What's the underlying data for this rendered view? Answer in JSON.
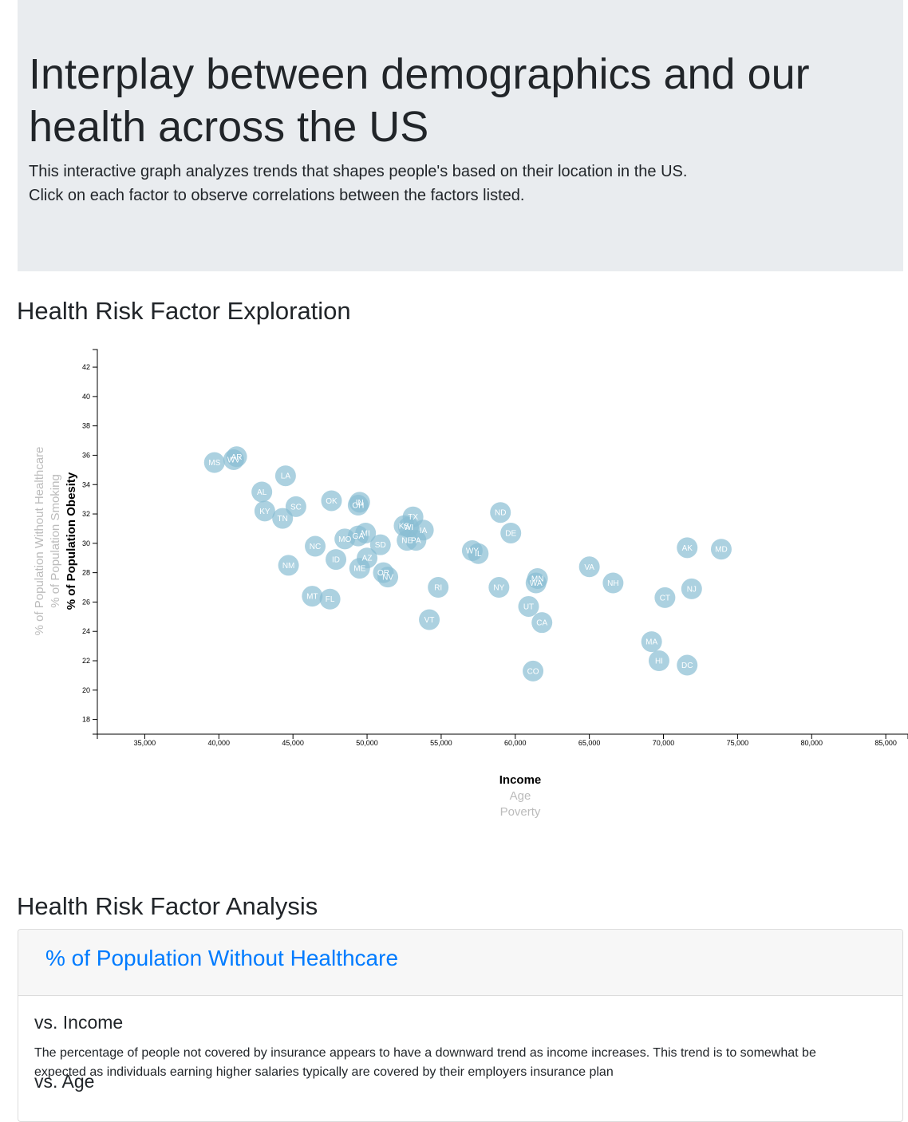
{
  "header": {
    "title": "Interplay between demographics and our health across the US",
    "line1": "This interactive graph analyzes trends that shapes people's based on their location in the US.",
    "line2": "Click on each factor to observe correlations between the factors listed."
  },
  "exploration": {
    "title": "Health Risk Factor Exploration"
  },
  "analysis": {
    "title": "Health Risk Factor Analysis",
    "card_title": "% of Population Without Healthcare",
    "sub1": "vs. Income",
    "text1": "The percentage of people not covered by insurance appears to have a downward trend as income increases. This trend is to somewhat be expected as individuals earning higher salaries typically are covered by their employers insurance plan",
    "sub2": "vs. Age"
  },
  "chart_data": {
    "type": "scatter",
    "x_axis_labels": [
      {
        "text": "Income",
        "active": true
      },
      {
        "text": "Age",
        "active": false
      },
      {
        "text": "Poverty",
        "active": false
      }
    ],
    "y_axis_labels": [
      {
        "text": "% of Population Obesity",
        "active": true
      },
      {
        "text": "% of Population Smoking",
        "active": false
      },
      {
        "text": "% of Population Without Healthcare",
        "active": false
      }
    ],
    "xlim": [
      31800,
      86500
    ],
    "ylim": [
      17,
      43.2
    ],
    "x_ticks": [
      35000,
      40000,
      45000,
      50000,
      55000,
      60000,
      65000,
      70000,
      75000,
      80000,
      85000
    ],
    "y_ticks": [
      18,
      20,
      22,
      24,
      26,
      28,
      30,
      32,
      34,
      36,
      38,
      40,
      42
    ],
    "marker_color": "#89bdd3",
    "points": [
      {
        "abbr": "MS",
        "x": 39700,
        "y": 35.5
      },
      {
        "abbr": "WV",
        "x": 41000,
        "y": 35.7
      },
      {
        "abbr": "AR",
        "x": 41200,
        "y": 35.9
      },
      {
        "abbr": "LA",
        "x": 44500,
        "y": 34.6
      },
      {
        "abbr": "AL",
        "x": 42900,
        "y": 33.5
      },
      {
        "abbr": "KY",
        "x": 43100,
        "y": 32.2
      },
      {
        "abbr": "TN",
        "x": 44300,
        "y": 31.7
      },
      {
        "abbr": "SC",
        "x": 45200,
        "y": 32.5
      },
      {
        "abbr": "OK",
        "x": 47600,
        "y": 32.9
      },
      {
        "abbr": "OH",
        "x": 49400,
        "y": 32.6
      },
      {
        "abbr": "IN",
        "x": 49500,
        "y": 32.8
      },
      {
        "abbr": "NC",
        "x": 46500,
        "y": 29.8
      },
      {
        "abbr": "MO",
        "x": 48500,
        "y": 30.3
      },
      {
        "abbr": "GA",
        "x": 49400,
        "y": 30.5
      },
      {
        "abbr": "MI",
        "x": 49900,
        "y": 30.7
      },
      {
        "abbr": "ID",
        "x": 47900,
        "y": 28.9
      },
      {
        "abbr": "NM",
        "x": 44700,
        "y": 28.5
      },
      {
        "abbr": "ME",
        "x": 49500,
        "y": 28.3
      },
      {
        "abbr": "AZ",
        "x": 50000,
        "y": 29.0
      },
      {
        "abbr": "SD",
        "x": 50900,
        "y": 29.9
      },
      {
        "abbr": "OR",
        "x": 51100,
        "y": 28.0
      },
      {
        "abbr": "NV",
        "x": 51400,
        "y": 27.7
      },
      {
        "abbr": "MT",
        "x": 46300,
        "y": 26.4
      },
      {
        "abbr": "FL",
        "x": 47500,
        "y": 26.2
      },
      {
        "abbr": "TX",
        "x": 53100,
        "y": 31.8
      },
      {
        "abbr": "KS",
        "x": 52500,
        "y": 31.2
      },
      {
        "abbr": "WI",
        "x": 52800,
        "y": 31.1
      },
      {
        "abbr": "IA",
        "x": 53800,
        "y": 30.9
      },
      {
        "abbr": "NE",
        "x": 52700,
        "y": 30.2
      },
      {
        "abbr": "PA",
        "x": 53300,
        "y": 30.2
      },
      {
        "abbr": "VT",
        "x": 54200,
        "y": 24.8
      },
      {
        "abbr": "RI",
        "x": 54800,
        "y": 27.0
      },
      {
        "abbr": "WY",
        "x": 57100,
        "y": 29.5
      },
      {
        "abbr": "IL",
        "x": 57500,
        "y": 29.3
      },
      {
        "abbr": "ND",
        "x": 59000,
        "y": 32.1
      },
      {
        "abbr": "DE",
        "x": 59700,
        "y": 30.7
      },
      {
        "abbr": "NY",
        "x": 58900,
        "y": 27.0
      },
      {
        "abbr": "MN",
        "x": 61500,
        "y": 27.6
      },
      {
        "abbr": "WA",
        "x": 61400,
        "y": 27.3
      },
      {
        "abbr": "UT",
        "x": 60900,
        "y": 25.7
      },
      {
        "abbr": "CA",
        "x": 61800,
        "y": 24.6
      },
      {
        "abbr": "CO",
        "x": 61200,
        "y": 21.3
      },
      {
        "abbr": "VA",
        "x": 65000,
        "y": 28.4
      },
      {
        "abbr": "NH",
        "x": 66600,
        "y": 27.3
      },
      {
        "abbr": "MA",
        "x": 69200,
        "y": 23.3
      },
      {
        "abbr": "HI",
        "x": 69700,
        "y": 22.0
      },
      {
        "abbr": "CT",
        "x": 70100,
        "y": 26.3
      },
      {
        "abbr": "AK",
        "x": 71600,
        "y": 29.7
      },
      {
        "abbr": "MD",
        "x": 73900,
        "y": 29.6
      },
      {
        "abbr": "NJ",
        "x": 71900,
        "y": 26.9
      },
      {
        "abbr": "DC",
        "x": 71600,
        "y": 21.7
      }
    ]
  }
}
